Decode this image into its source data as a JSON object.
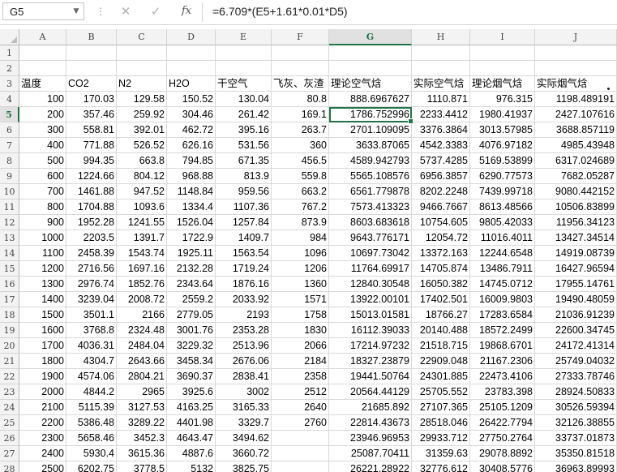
{
  "formula_bar": {
    "name_box": "G5",
    "cancel_icon": "✕",
    "enter_icon": "✓",
    "fx_label": "fx",
    "formula": "=6.709*(E5+1.61*0.01*D5)"
  },
  "grid": {
    "columns": [
      "A",
      "B",
      "C",
      "D",
      "E",
      "F",
      "G",
      "H",
      "I",
      "J"
    ],
    "selected_column": "G",
    "selected_row": "5",
    "rows": [
      {
        "num": "1",
        "cells": [
          "",
          "",
          "",
          "",
          "",
          "",
          "",
          "",
          "",
          ""
        ]
      },
      {
        "num": "2",
        "cells": [
          "",
          "",
          "",
          "",
          "",
          "",
          "",
          "",
          "",
          ""
        ]
      },
      {
        "num": "3",
        "cells": [
          "温度",
          "CO2",
          "N2",
          "H2O",
          "干空气",
          "飞灰、灰渣",
          "理论空气焓",
          "实际空气焓",
          "理论烟气焓",
          "实际烟气焓"
        ]
      },
      {
        "num": "4",
        "cells": [
          "100",
          "170.03",
          "129.58",
          "150.52",
          "130.04",
          "80.8",
          "888.6967627",
          "1110.871",
          "976.315",
          "1198.489191"
        ]
      },
      {
        "num": "5",
        "cells": [
          "200",
          "357.46",
          "259.92",
          "304.46",
          "261.42",
          "169.1",
          "1786.752996",
          "2233.4412",
          "1980.41937",
          "2427.107616"
        ]
      },
      {
        "num": "6",
        "cells": [
          "300",
          "558.81",
          "392.01",
          "462.72",
          "395.16",
          "263.7",
          "2701.109095",
          "3376.3864",
          "3013.57985",
          "3688.857119"
        ]
      },
      {
        "num": "7",
        "cells": [
          "400",
          "771.88",
          "526.52",
          "626.16",
          "531.56",
          "360",
          "3633.87065",
          "4542.3383",
          "4076.97182",
          "4985.43948"
        ]
      },
      {
        "num": "8",
        "cells": [
          "500",
          "994.35",
          "663.8",
          "794.85",
          "671.35",
          "456.5",
          "4589.942793",
          "5737.4285",
          "5169.53899",
          "6317.024689"
        ]
      },
      {
        "num": "9",
        "cells": [
          "600",
          "1224.66",
          "804.12",
          "968.88",
          "813.9",
          "559.8",
          "5565.108576",
          "6956.3857",
          "6290.77573",
          "7682.05287"
        ]
      },
      {
        "num": "10",
        "cells": [
          "700",
          "1461.88",
          "947.52",
          "1148.84",
          "959.56",
          "663.2",
          "6561.779878",
          "8202.2248",
          "7439.99718",
          "9080.442152"
        ]
      },
      {
        "num": "11",
        "cells": [
          "800",
          "1704.88",
          "1093.6",
          "1334.4",
          "1107.36",
          "767.2",
          "7573.413323",
          "9466.7667",
          "8613.48566",
          "10506.83899"
        ]
      },
      {
        "num": "12",
        "cells": [
          "900",
          "1952.28",
          "1241.55",
          "1526.04",
          "1257.84",
          "873.9",
          "8603.683618",
          "10754.605",
          "9805.42033",
          "11956.34123"
        ]
      },
      {
        "num": "13",
        "cells": [
          "1000",
          "2203.5",
          "1391.7",
          "1722.9",
          "1409.7",
          "984",
          "9643.776171",
          "12054.72",
          "11016.4011",
          "13427.34514"
        ]
      },
      {
        "num": "14",
        "cells": [
          "1100",
          "2458.39",
          "1543.74",
          "1925.11",
          "1563.54",
          "1096",
          "10697.73042",
          "13372.163",
          "12244.6548",
          "14919.08739"
        ]
      },
      {
        "num": "15",
        "cells": [
          "1200",
          "2716.56",
          "1697.16",
          "2132.28",
          "1719.24",
          "1206",
          "11764.69917",
          "14705.874",
          "13486.7911",
          "16427.96594"
        ]
      },
      {
        "num": "16",
        "cells": [
          "1300",
          "2976.74",
          "1852.76",
          "2343.64",
          "1876.16",
          "1360",
          "12840.30548",
          "16050.382",
          "14745.0712",
          "17955.14761"
        ]
      },
      {
        "num": "17",
        "cells": [
          "1400",
          "3239.04",
          "2008.72",
          "2559.2",
          "2033.92",
          "1571",
          "13922.00101",
          "17402.501",
          "16009.9803",
          "19490.48059"
        ]
      },
      {
        "num": "18",
        "cells": [
          "1500",
          "3501.1",
          "2166",
          "2779.05",
          "2193",
          "1758",
          "15013.01581",
          "18766.27",
          "17283.6584",
          "21036.91239"
        ]
      },
      {
        "num": "19",
        "cells": [
          "1600",
          "3768.8",
          "2324.48",
          "3001.76",
          "2353.28",
          "1830",
          "16112.39033",
          "20140.488",
          "18572.2499",
          "22600.34745"
        ]
      },
      {
        "num": "20",
        "cells": [
          "1700",
          "4036.31",
          "2484.04",
          "3229.32",
          "2513.96",
          "2066",
          "17214.97232",
          "21518.715",
          "19868.6701",
          "24172.41314"
        ]
      },
      {
        "num": "21",
        "cells": [
          "1800",
          "4304.7",
          "2643.66",
          "3458.34",
          "2676.06",
          "2184",
          "18327.23879",
          "22909.048",
          "21167.2306",
          "25749.04032"
        ]
      },
      {
        "num": "22",
        "cells": [
          "1900",
          "4574.06",
          "2804.21",
          "3690.37",
          "2838.41",
          "2358",
          "19441.50764",
          "24301.885",
          "22473.4106",
          "27333.78746"
        ]
      },
      {
        "num": "23",
        "cells": [
          "2000",
          "4844.2",
          "2965",
          "3925.6",
          "3002",
          "2512",
          "20564.44129",
          "25705.552",
          "23783.398",
          "28924.50833"
        ]
      },
      {
        "num": "24",
        "cells": [
          "2100",
          "5115.39",
          "3127.53",
          "4163.25",
          "3165.33",
          "2640",
          "21685.892",
          "27107.365",
          "25105.1209",
          "30526.59394"
        ]
      },
      {
        "num": "25",
        "cells": [
          "2200",
          "5386.48",
          "3289.22",
          "4401.98",
          "3329.7",
          "2760",
          "22814.43673",
          "28518.046",
          "26422.7794",
          "32126.38855"
        ]
      },
      {
        "num": "26",
        "cells": [
          "2300",
          "5658.46",
          "3452.3",
          "4643.47",
          "3494.62",
          "",
          "23946.96953",
          "29933.712",
          "27750.2764",
          "33737.01873"
        ]
      },
      {
        "num": "27",
        "cells": [
          "2400",
          "5930.4",
          "3615.36",
          "4887.6",
          "3660.72",
          "",
          "25087.70411",
          "31359.63",
          "29078.8892",
          "35350.81518"
        ]
      },
      {
        "num": "28",
        "cells": [
          "2500",
          "6202.75",
          "3778.5",
          "5132",
          "3825.75",
          "",
          "26221.28922",
          "32776.612",
          "30408.5776",
          "36963.89993"
        ]
      }
    ]
  }
}
